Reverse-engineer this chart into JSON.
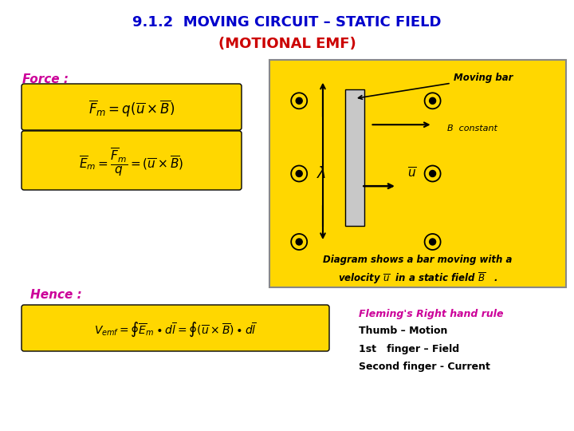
{
  "title_line1": "9.1.2  MOVING CIRCUIT – STATIC FIELD",
  "title_line2": "(MOTIONAL EMF)",
  "title_color": "#0000CC",
  "title2_color": "#CC0000",
  "bg_color": "#FFFFFF",
  "yellow_bg": "#FFD700",
  "force_label": "Force :",
  "hence_label": "Hence :",
  "label_color": "#CC0099",
  "eq1": "$\\overline{F}_m = q\\left(\\overline{u} \\times \\overline{B}\\right)$",
  "eq2": "$\\overline{E}_m = \\dfrac{\\overline{F}_m}{q} = \\left(\\overline{u} \\times \\overline{B}\\right)$",
  "eq3": "$V_{emf} = \\oint \\overline{E}_m \\bullet d\\overline{l} = \\oint \\left(\\overline{u} \\times \\overline{B}\\right) \\bullet d\\overline{l}$",
  "fleming_title": "Fleming's Right hand rule",
  "fleming_color": "#CC0099",
  "thumb_text": "Thumb – Motion",
  "finger1_text": "1st   finger – Field",
  "finger2_text": "Second finger - Current",
  "moving_bar_label": "Moving bar",
  "b_constant_label": "B  constant",
  "lambda_label": "$\\lambda$",
  "u_bar_label": "$\\overline{u}$",
  "diagram_caption1": "Diagram shows a bar moving with a",
  "diagram_caption2": "velocity $\\overline{u}$  in a static field $\\overline{B}$   ."
}
